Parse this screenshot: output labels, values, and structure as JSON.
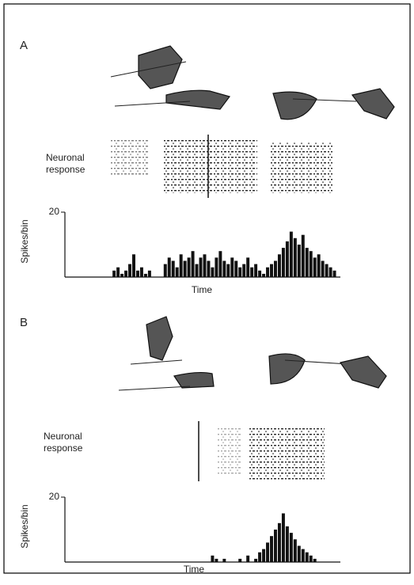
{
  "chart_data": [
    {
      "type": "bar",
      "panel": "A",
      "raster_label": [
        "Neuronal",
        "response"
      ],
      "ylabel": "Spikes/bin",
      "xlabel": "Time",
      "ylim": [
        0,
        20
      ],
      "yticks": [
        20
      ],
      "color": "#111",
      "values": [
        0,
        0,
        0,
        0,
        0,
        0,
        0,
        0,
        0,
        0,
        0,
        0,
        2,
        3,
        1,
        2,
        4,
        7,
        2,
        3,
        1,
        2,
        0,
        0,
        0,
        4,
        6,
        5,
        3,
        7,
        5,
        6,
        8,
        4,
        6,
        7,
        5,
        3,
        6,
        8,
        5,
        4,
        6,
        5,
        3,
        4,
        6,
        3,
        4,
        2,
        1,
        3,
        4,
        5,
        7,
        9,
        11,
        14,
        12,
        10,
        13,
        9,
        8,
        6,
        7,
        5,
        4,
        3,
        2,
        0
      ]
    },
    {
      "type": "bar",
      "panel": "B",
      "raster_label": [
        "Neuronal",
        "response"
      ],
      "ylabel": "Spikes/bin",
      "xlabel": "Time",
      "ylim": [
        0,
        20
      ],
      "yticks": [
        20
      ],
      "color": "#111",
      "values": [
        0,
        0,
        0,
        0,
        0,
        0,
        0,
        0,
        0,
        0,
        0,
        0,
        0,
        0,
        0,
        0,
        0,
        0,
        0,
        0,
        0,
        0,
        0,
        0,
        0,
        0,
        0,
        0,
        0,
        0,
        0,
        0,
        0,
        0,
        0,
        0,
        0,
        2,
        1,
        0,
        1,
        0,
        0,
        0,
        1,
        0,
        2,
        0,
        1,
        3,
        4,
        6,
        8,
        10,
        12,
        15,
        11,
        9,
        7,
        5,
        4,
        3,
        2,
        1,
        0,
        0,
        0,
        0,
        0,
        0
      ]
    }
  ]
}
